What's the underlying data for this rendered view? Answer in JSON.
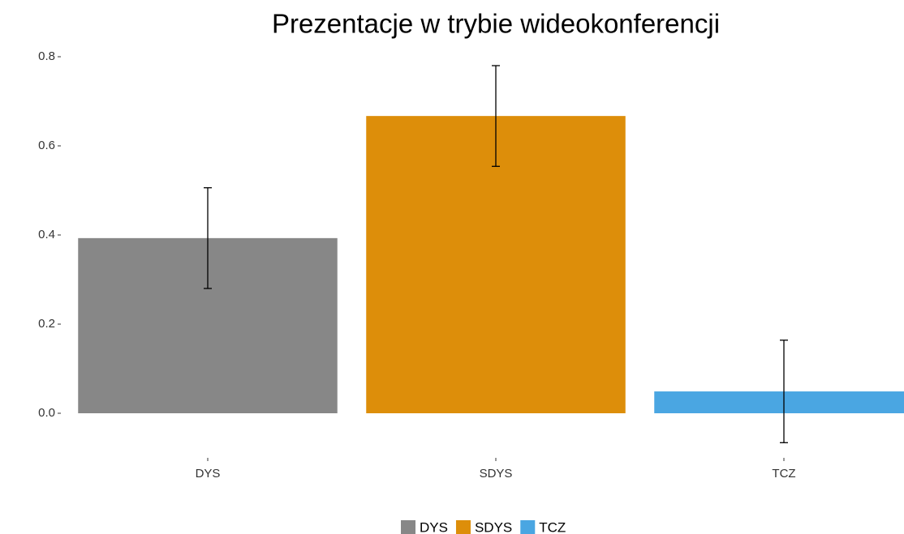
{
  "chart_data": {
    "type": "bar",
    "title": "Prezentacje w trybie wideokonferencji",
    "categories": [
      "DYS",
      "SDYS",
      "TCZ"
    ],
    "values": [
      0.393,
      0.667,
      0.049
    ],
    "errors": [
      0.113,
      0.113,
      0.115
    ],
    "colors": [
      "#878787",
      "#dd8e0a",
      "#4aa6e2"
    ],
    "ylim": [
      -0.1,
      0.82
    ],
    "yticks": [
      {
        "value": 0,
        "label": "0.0"
      },
      0.2,
      0.4,
      0.6,
      0.8
    ],
    "grid": false,
    "legend": "bottom"
  }
}
